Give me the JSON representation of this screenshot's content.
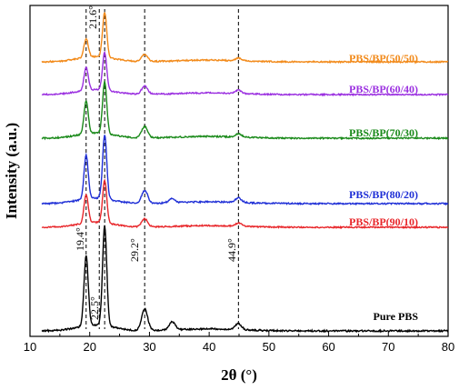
{
  "chart_data": {
    "type": "line",
    "xlabel": "2θ (°)",
    "ylabel": "Intensity (a.u.)",
    "xlim": [
      10,
      80
    ],
    "x_ticks": [
      "10",
      "20",
      "30",
      "40",
      "50",
      "60",
      "70",
      "80"
    ],
    "y_ticks": "none",
    "grid": false,
    "legend": "inline labels at right of each curve",
    "reference_lines": [
      19.4,
      21.6,
      22.5,
      29.2,
      44.9
    ],
    "peak_labels": [
      {
        "text": "19.4°",
        "x": 19.4
      },
      {
        "text": "21.6°",
        "x": 21.6
      },
      {
        "text": "22.5°",
        "x": 22.5
      },
      {
        "text": "29.2°",
        "x": 29.2
      },
      {
        "text": "44.9°",
        "x": 44.9
      }
    ],
    "series": [
      {
        "name": "Pure PBS",
        "color": "#000000",
        "baseline": 0.0,
        "peaks": [
          [
            19.4,
            70
          ],
          [
            22.5,
            100
          ],
          [
            29.2,
            22
          ],
          [
            33.8,
            8
          ],
          [
            44.9,
            6
          ]
        ]
      },
      {
        "name": "PBS/BP(90/10)",
        "color": "#e8262a",
        "baseline": 1.0,
        "peaks": [
          [
            19.4,
            35
          ],
          [
            22.5,
            52
          ],
          [
            29.2,
            10
          ],
          [
            44.9,
            4
          ]
        ]
      },
      {
        "name": "PBS/BP(80/20)",
        "color": "#1f2fd6",
        "baseline": 1.45,
        "peaks": [
          [
            19.4,
            48
          ],
          [
            22.5,
            70
          ],
          [
            29.2,
            14
          ],
          [
            33.8,
            5
          ],
          [
            44.9,
            5
          ]
        ]
      },
      {
        "name": "PBS/BP(70/30)",
        "color": "#1a8a1a",
        "baseline": 2.2,
        "peaks": [
          [
            19.4,
            38
          ],
          [
            22.5,
            60
          ],
          [
            29.2,
            13
          ],
          [
            44.9,
            4
          ]
        ]
      },
      {
        "name": "PBS/BP(60/40)",
        "color": "#9b30e0",
        "baseline": 2.75,
        "peaks": [
          [
            19.4,
            28
          ],
          [
            22.5,
            46
          ],
          [
            29.2,
            10
          ],
          [
            44.9,
            4
          ]
        ]
      },
      {
        "name": "PBS/BP(50/50)",
        "color": "#f28a1a",
        "baseline": 3.3,
        "peaks": [
          [
            19.4,
            22
          ],
          [
            22.5,
            52
          ],
          [
            29.2,
            8
          ],
          [
            44.9,
            3
          ]
        ]
      }
    ]
  }
}
